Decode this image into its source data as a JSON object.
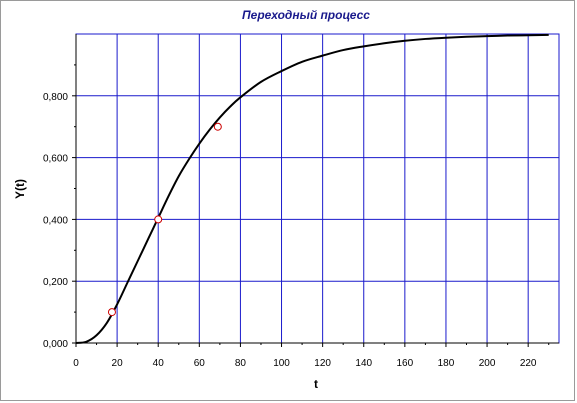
{
  "chart_data": {
    "type": "line",
    "title": "Переходный процесс",
    "xlabel": "t",
    "ylabel": "Y(t)",
    "xlim": [
      0,
      235
    ],
    "ylim": [
      0,
      1
    ],
    "grid": true,
    "x_ticks": [
      0,
      20,
      40,
      60,
      80,
      100,
      120,
      140,
      160,
      180,
      200,
      220
    ],
    "y_ticks": [
      0,
      0.2,
      0.4,
      0.6,
      0.8
    ],
    "x_tick_labels": [
      "0",
      "20",
      "40",
      "60",
      "80",
      "100",
      "120",
      "140",
      "160",
      "180",
      "200",
      "220"
    ],
    "y_tick_labels": [
      "0,000",
      "0,200",
      "0,400",
      "0,600",
      "0,800"
    ],
    "colors": {
      "grid": "#1a1acc",
      "curve": "#000000",
      "marker_edge": "#cc0000",
      "marker_fill": "#ffffff",
      "title": "#1a1a8c"
    },
    "series": [
      {
        "x": [
          0,
          5,
          10,
          15,
          20,
          25,
          30,
          35,
          40,
          45,
          50,
          55,
          60,
          65,
          70,
          75,
          80,
          90,
          100,
          110,
          120,
          130,
          140,
          150,
          160,
          170,
          180,
          190,
          200,
          210,
          220,
          230
        ],
        "y": [
          0,
          0.004,
          0.025,
          0.065,
          0.125,
          0.195,
          0.265,
          0.335,
          0.405,
          0.475,
          0.54,
          0.595,
          0.645,
          0.69,
          0.73,
          0.765,
          0.795,
          0.845,
          0.88,
          0.91,
          0.93,
          0.948,
          0.96,
          0.97,
          0.978,
          0.984,
          0.988,
          0.991,
          0.993,
          0.995,
          0.996,
          0.997
        ]
      }
    ],
    "markers": [
      {
        "x": 17.5,
        "y": 0.1
      },
      {
        "x": 40,
        "y": 0.4
      },
      {
        "x": 69,
        "y": 0.7
      }
    ]
  }
}
